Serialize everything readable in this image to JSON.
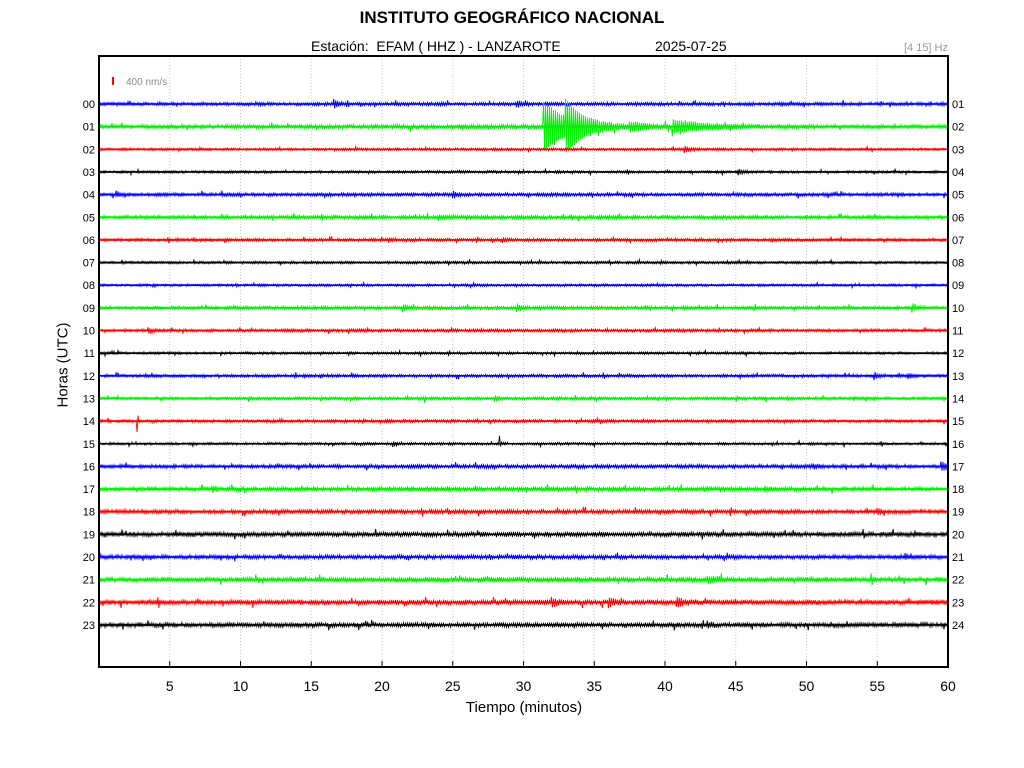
{
  "header": {
    "title": "INSTITUTO GEOGRÁFICO NACIONAL",
    "station_line": "Estación:  EFAM ( HHZ ) - LANZAROTE",
    "date": "2025-07-25",
    "filter_band": "[4 15] Hz"
  },
  "chart_data": {
    "type": "line",
    "title": "INSTITUTO GEOGRÁFICO NACIONAL",
    "xlabel": "Tiempo (minutos)",
    "ylabel": "Horas (UTC)",
    "xlim": [
      0,
      60
    ],
    "x_ticks": [
      "5",
      "10",
      "15",
      "20",
      "25",
      "30",
      "35",
      "40",
      "45",
      "50",
      "55",
      "60"
    ],
    "left_tick_labels": [
      "00",
      "01",
      "02",
      "03",
      "04",
      "05",
      "06",
      "07",
      "08",
      "09",
      "10",
      "11",
      "12",
      "13",
      "14",
      "15",
      "16",
      "17",
      "18",
      "19",
      "20",
      "21",
      "22",
      "23"
    ],
    "right_tick_labels": [
      "01",
      "02",
      "03",
      "04",
      "05",
      "06",
      "07",
      "08",
      "09",
      "10",
      "11",
      "12",
      "13",
      "14",
      "15",
      "16",
      "17",
      "18",
      "19",
      "20",
      "21",
      "22",
      "23",
      "24"
    ],
    "scale_label": "400 nm/s",
    "grid": "vertical dotted",
    "colors": [
      "#0000ff",
      "#00ee00",
      "#ff0000",
      "#000000"
    ],
    "traces": [
      {
        "hour": "00",
        "color": "#0000ff",
        "noise": 0.2,
        "events": [
          [
            16.6,
            0.6,
            0.3
          ],
          [
            29.5,
            0.4,
            0.5
          ]
        ]
      },
      {
        "hour": "01",
        "color": "#00ee00",
        "noise": 0.25,
        "events": [
          [
            31.4,
            4.0,
            1.6
          ],
          [
            33.0,
            2.8,
            1.2
          ],
          [
            40.5,
            0.9,
            2.5
          ],
          [
            37.5,
            0.5,
            1.5
          ]
        ]
      },
      {
        "hour": "02",
        "color": "#ff0000",
        "noise": 0.15,
        "events": [
          [
            41.4,
            0.5,
            0.3
          ]
        ]
      },
      {
        "hour": "03",
        "color": "#000000",
        "noise": 0.15,
        "events": [
          [
            45.2,
            0.4,
            0.3
          ]
        ]
      },
      {
        "hour": "04",
        "color": "#0000ff",
        "noise": 0.2,
        "events": [
          [
            1.2,
            0.4,
            0.3
          ],
          [
            25.0,
            0.5,
            0.3
          ]
        ]
      },
      {
        "hour": "05",
        "color": "#00ee00",
        "noise": 0.22,
        "events": [
          [
            24.0,
            0.4,
            0.3
          ]
        ]
      },
      {
        "hour": "06",
        "color": "#ff0000",
        "noise": 0.18,
        "events": [
          [
            20.5,
            0.3,
            0.2
          ],
          [
            28.5,
            0.3,
            0.2
          ]
        ]
      },
      {
        "hour": "07",
        "color": "#000000",
        "noise": 0.15,
        "events": []
      },
      {
        "hour": "08",
        "color": "#0000ff",
        "noise": 0.15,
        "events": []
      },
      {
        "hour": "09",
        "color": "#00ee00",
        "noise": 0.2,
        "events": [
          [
            21.5,
            0.5,
            0.3
          ],
          [
            29.5,
            0.6,
            0.3
          ],
          [
            57.5,
            0.6,
            0.3
          ]
        ]
      },
      {
        "hour": "10",
        "color": "#ff0000",
        "noise": 0.18,
        "events": [
          [
            3.5,
            0.3,
            0.3
          ]
        ]
      },
      {
        "hour": "11",
        "color": "#000000",
        "noise": 0.15,
        "events": []
      },
      {
        "hour": "12",
        "color": "#0000ff",
        "noise": 0.18,
        "events": [
          [
            54.8,
            0.5,
            0.3
          ],
          [
            57.2,
            0.4,
            0.2
          ]
        ]
      },
      {
        "hour": "13",
        "color": "#00ee00",
        "noise": 0.18,
        "events": [
          [
            23.0,
            0.8,
            0.05
          ],
          [
            28.0,
            0.4,
            0.2
          ]
        ]
      },
      {
        "hour": "14",
        "color": "#ff0000",
        "noise": 0.18,
        "events": [
          [
            2.7,
            1.6,
            0.06
          ]
        ]
      },
      {
        "hour": "15",
        "color": "#000000",
        "noise": 0.15,
        "events": [
          [
            28.3,
            1.4,
            0.05
          ],
          [
            20.8,
            0.3,
            0.3
          ]
        ]
      },
      {
        "hour": "16",
        "color": "#0000ff",
        "noise": 0.22,
        "events": [
          [
            59.5,
            0.6,
            0.6
          ],
          [
            50.5,
            0.3,
            0.3
          ]
        ]
      },
      {
        "hour": "17",
        "color": "#00ee00",
        "noise": 0.25,
        "events": [
          [
            8.0,
            0.4,
            0.3
          ],
          [
            47.0,
            0.4,
            0.3
          ]
        ]
      },
      {
        "hour": "18",
        "color": "#ff0000",
        "noise": 0.25,
        "events": [
          [
            55.0,
            0.4,
            0.3
          ]
        ]
      },
      {
        "hour": "19",
        "color": "#000000",
        "noise": 0.28,
        "events": []
      },
      {
        "hour": "20",
        "color": "#0000ff",
        "noise": 0.25,
        "events": [
          [
            57.0,
            0.3,
            0.3
          ]
        ]
      },
      {
        "hour": "21",
        "color": "#00ee00",
        "noise": 0.3,
        "events": [
          [
            54.6,
            0.8,
            0.1
          ],
          [
            43.0,
            0.4,
            0.8
          ]
        ]
      },
      {
        "hour": "22",
        "color": "#ff0000",
        "noise": 0.3,
        "events": [
          [
            32.0,
            0.6,
            0.3
          ],
          [
            36.0,
            0.6,
            0.3
          ],
          [
            40.8,
            0.6,
            0.6
          ]
        ]
      },
      {
        "hour": "23",
        "color": "#000000",
        "noise": 0.28,
        "events": [
          [
            43.0,
            0.4,
            0.3
          ]
        ]
      }
    ]
  }
}
